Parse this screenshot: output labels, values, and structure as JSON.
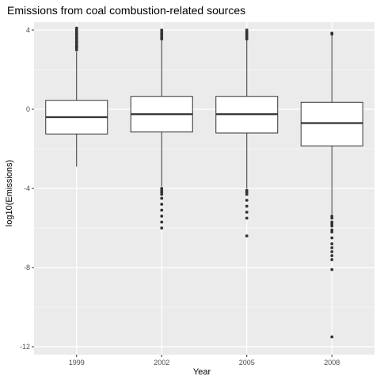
{
  "chart_data": {
    "type": "boxplot",
    "title": "Emissions from coal combustion-related sources",
    "xlabel": "Year",
    "ylabel": "log10(Emissions)",
    "categories": [
      "1999",
      "2002",
      "2005",
      "2008"
    ],
    "ylim": [
      -12.4,
      4.4
    ],
    "yticks": [
      4,
      0,
      -4,
      -8,
      -12
    ],
    "grid": true,
    "background": "#EBEBEB",
    "grid_color": "#FFFFFF",
    "box_stroke": "#333333",
    "box_fill": "#FFFFFF",
    "outlier_color": "#333333",
    "boxes": [
      {
        "category": "1999",
        "whisker_low": -2.9,
        "q1": -1.25,
        "median": -0.4,
        "q3": 0.45,
        "whisker_high": 2.9,
        "outliers": [
          3.0,
          3.1,
          3.15,
          3.2,
          3.3,
          3.4,
          3.5,
          3.6,
          3.7,
          3.8,
          3.9,
          4.0,
          4.1
        ]
      },
      {
        "category": "2002",
        "whisker_low": -3.9,
        "q1": -1.15,
        "median": -0.25,
        "q3": 0.65,
        "whisker_high": 3.5,
        "outliers": [
          3.55,
          3.6,
          3.7,
          3.8,
          3.9,
          4.0,
          -4.0,
          -4.1,
          -4.2,
          -4.3,
          -4.5,
          -4.8,
          -5.1,
          -5.4,
          -5.7,
          -6.0
        ]
      },
      {
        "category": "2005",
        "whisker_low": -4.0,
        "q1": -1.2,
        "median": -0.25,
        "q3": 0.65,
        "whisker_high": 3.5,
        "outliers": [
          3.55,
          3.6,
          3.7,
          3.8,
          3.9,
          4.0,
          -4.1,
          -4.2,
          -4.3,
          -4.6,
          -4.9,
          -5.2,
          -5.5,
          -6.4
        ]
      },
      {
        "category": "2008",
        "whisker_low": -5.3,
        "q1": -1.85,
        "median": -0.7,
        "q3": 0.35,
        "whisker_high": 3.75,
        "outliers": [
          3.8,
          3.85,
          -5.4,
          -5.5,
          -5.7,
          -5.8,
          -5.9,
          -6.1,
          -6.2,
          -6.5,
          -6.8,
          -7.0,
          -7.2,
          -7.4,
          -7.6,
          -8.1,
          -11.5
        ]
      }
    ]
  }
}
